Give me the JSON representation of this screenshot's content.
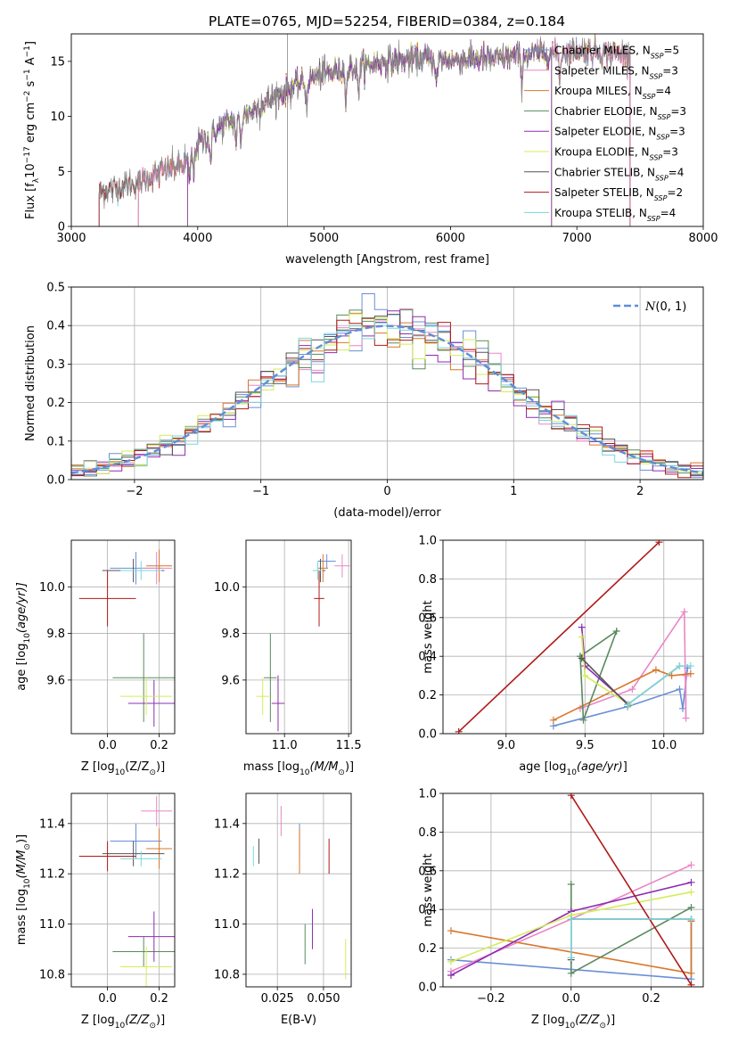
{
  "figure_title": "PLATE=0765, MJD=52254, FIBERID=0384, z=0.184",
  "colors": {
    "Chabrier MILES": "#6a8fd6",
    "Salpeter MILES": "#e986c8",
    "Kroupa MILES": "#d8772b",
    "Chabrier ELODIE": "#5a8a5e",
    "Salpeter ELODIE": "#8e2cb0",
    "Kroupa ELODIE": "#d4ec5a",
    "Chabrier STELIB": "#555555",
    "Salpeter STELIB": "#b01a1a",
    "Kroupa STELIB": "#7ad6dc",
    "normal": "#5f8dd9"
  },
  "chart_data": [
    {
      "id": "spectrum",
      "type": "line",
      "title": "",
      "xlabel": "wavelength [Angstrom, rest frame]",
      "ylabel": "Flux [f",
      "xlim": [
        3000,
        8000
      ],
      "ylim": [
        0,
        17.5
      ],
      "xticks": [
        "3000",
        "4000",
        "5000",
        "6000",
        "7000",
        "8000"
      ],
      "yticks": [
        "0",
        "5",
        "10",
        "15"
      ],
      "grid": false,
      "legend_position": "top-right",
      "legend": [
        {
          "name": "Chabrier MILES",
          "nssp": "5"
        },
        {
          "name": "Salpeter MILES",
          "nssp": "3"
        },
        {
          "name": "Kroupa MILES",
          "nssp": "4"
        },
        {
          "name": "Chabrier ELODIE",
          "nssp": "3"
        },
        {
          "name": "Salpeter ELODIE",
          "nssp": "3"
        },
        {
          "name": "Kroupa ELODIE",
          "nssp": "3"
        },
        {
          "name": "Chabrier STELIB",
          "nssp": "4"
        },
        {
          "name": "Salpeter STELIB",
          "nssp": "2"
        },
        {
          "name": "Kroupa STELIB",
          "nssp": "4"
        }
      ],
      "continuum": {
        "x": [
          3200,
          3300,
          3400,
          3500,
          3600,
          3700,
          3800,
          3900,
          4000,
          4100,
          4200,
          4300,
          4400,
          4500,
          4600,
          4800,
          5000,
          5200,
          5400,
          5600,
          5800,
          6000,
          6200,
          6400,
          6600,
          6800,
          7000,
          7200,
          7400,
          7500
        ],
        "y": [
          3.2,
          3.3,
          3.7,
          3.9,
          4.3,
          4.9,
          5.3,
          5.6,
          7.5,
          8.3,
          9.2,
          9.8,
          10.3,
          11.0,
          11.7,
          13.0,
          13.9,
          14.3,
          14.8,
          15.1,
          15.2,
          15.1,
          15.2,
          15.3,
          15.6,
          15.8,
          16.0,
          15.8,
          15.6,
          15.5
        ]
      },
      "model_ranges": [
        {
          "name": "Chabrier MILES",
          "x": [
            3530,
            7420
          ]
        },
        {
          "name": "Salpeter MILES",
          "x": [
            3530,
            7420
          ]
        },
        {
          "name": "Kroupa MILES",
          "x": [
            3530,
            7420
          ]
        },
        {
          "name": "Chabrier ELODIE",
          "x": [
            3920,
            6800
          ]
        },
        {
          "name": "Salpeter ELODIE",
          "x": [
            3920,
            6800
          ]
        },
        {
          "name": "Kroupa ELODIE",
          "x": [
            3920,
            6800
          ]
        },
        {
          "name": "Chabrier STELIB",
          "x": [
            3220,
            7420
          ]
        },
        {
          "name": "Salpeter STELIB",
          "x": [
            3220,
            7420
          ]
        },
        {
          "name": "Kroupa STELIB",
          "x": [
            3220,
            7420
          ]
        }
      ]
    },
    {
      "id": "residual_hist",
      "type": "line",
      "title": "",
      "xlabel": "(data-model)/error",
      "ylabel": "Normed distribution",
      "xlim": [
        -2.5,
        2.5
      ],
      "ylim": [
        0,
        0.5
      ],
      "xticks": [
        "−2",
        "−1",
        "0",
        "1",
        "2"
      ],
      "yticks": [
        "0.0",
        "0.1",
        "0.2",
        "0.3",
        "0.4",
        "0.5"
      ],
      "grid": true,
      "legend_position": "top-right",
      "legend": [
        {
          "name": "N(0,1)"
        }
      ],
      "bin_width": 0.1,
      "reference_curve": {
        "name": "N(0,1)",
        "mean": 0,
        "sigma": 1
      }
    },
    {
      "id": "z_age",
      "type": "scatter",
      "xlabel": "Z [log",
      "ylabel": "age  [log",
      "xlim": [
        -0.14,
        0.26
      ],
      "ylim": [
        9.37,
        10.2
      ],
      "xticks": [
        "0.0",
        "0.2"
      ],
      "yticks": [
        "9.6",
        "9.8",
        "10.0"
      ],
      "grid": true,
      "points": [
        {
          "name": "Chabrier MILES",
          "x": 0.11,
          "y": 10.08,
          "xerr": 0.1,
          "yerr": 0.07
        },
        {
          "name": "Salpeter MILES",
          "x": 0.19,
          "y": 10.08,
          "xerr": 0.06,
          "yerr": 0.07
        },
        {
          "name": "Kroupa MILES",
          "x": 0.2,
          "y": 10.09,
          "xerr": 0.05,
          "yerr": 0.07
        },
        {
          "name": "Chabrier ELODIE",
          "x": 0.14,
          "y": 9.61,
          "xerr": 0.12,
          "yerr": 0.19
        },
        {
          "name": "Salpeter ELODIE",
          "x": 0.18,
          "y": 9.5,
          "xerr": 0.1,
          "yerr": 0.1
        },
        {
          "name": "Kroupa ELODIE",
          "x": 0.15,
          "y": 9.53,
          "xerr": 0.1,
          "yerr": 0.08
        },
        {
          "name": "Chabrier STELIB",
          "x": 0.1,
          "y": 10.07,
          "xerr": 0.12,
          "yerr": 0.05
        },
        {
          "name": "Salpeter STELIB",
          "x": 0.0,
          "y": 9.95,
          "xerr": 0.11,
          "yerr": 0.12
        },
        {
          "name": "Kroupa STELIB",
          "x": 0.13,
          "y": 10.07,
          "xerr": 0.08,
          "yerr": 0.04
        }
      ]
    },
    {
      "id": "mass_age",
      "type": "scatter",
      "xlabel": "mass [log",
      "ylabel": "",
      "xlim": [
        10.7,
        11.52
      ],
      "ylim": [
        9.37,
        10.2
      ],
      "xticks": [
        "11.0",
        "11.5"
      ],
      "yticks": [
        "9.6",
        "9.8",
        "10.0"
      ],
      "grid": true,
      "points": [
        {
          "name": "Chabrier MILES",
          "x": 11.33,
          "y": 10.11,
          "xerr": 0.07,
          "yerr": 0.03
        },
        {
          "name": "Salpeter MILES",
          "x": 11.45,
          "y": 10.09,
          "xerr": 0.06,
          "yerr": 0.05
        },
        {
          "name": "Kroupa MILES",
          "x": 11.3,
          "y": 10.08,
          "xerr": 0.04,
          "yerr": 0.06
        },
        {
          "name": "Chabrier ELODIE",
          "x": 10.89,
          "y": 9.61,
          "xerr": 0.05,
          "yerr": 0.19
        },
        {
          "name": "Salpeter ELODIE",
          "x": 10.95,
          "y": 9.5,
          "xerr": 0.05,
          "yerr": 0.12
        },
        {
          "name": "Kroupa ELODIE",
          "x": 10.83,
          "y": 9.53,
          "xerr": 0.05,
          "yerr": 0.08
        },
        {
          "name": "Chabrier STELIB",
          "x": 11.28,
          "y": 10.07,
          "xerr": 0.04,
          "yerr": 0.05
        },
        {
          "name": "Salpeter STELIB",
          "x": 11.27,
          "y": 9.95,
          "xerr": 0.04,
          "yerr": 0.12
        },
        {
          "name": "Kroupa STELIB",
          "x": 11.26,
          "y": 10.07,
          "xerr": 0.04,
          "yerr": 0.04
        }
      ]
    },
    {
      "id": "age_weight",
      "type": "line",
      "xlabel": "age  [log",
      "ylabel": "mass weight",
      "xlim": [
        8.6,
        10.25
      ],
      "ylim": [
        0,
        1
      ],
      "xticks": [
        "9.0",
        "9.5",
        "10.0"
      ],
      "yticks": [
        "0.0",
        "0.2",
        "0.4",
        "0.6",
        "0.8",
        "1.0"
      ],
      "grid": true,
      "series": [
        {
          "name": "Chabrier MILES",
          "x": [
            9.3,
            9.77,
            10.1,
            10.12,
            10.15
          ],
          "y": [
            0.04,
            0.14,
            0.23,
            0.13,
            0.34
          ]
        },
        {
          "name": "Salpeter MILES",
          "x": [
            9.47,
            9.8,
            10.13,
            10.14,
            10.14
          ],
          "y": [
            0.13,
            0.23,
            0.63,
            0.08,
            0.3
          ]
        },
        {
          "name": "Kroupa MILES",
          "x": [
            9.3,
            9.95,
            10.05,
            10.17
          ],
          "y": [
            0.07,
            0.33,
            0.3,
            0.31
          ]
        },
        {
          "name": "Chabrier ELODIE",
          "x": [
            9.47,
            9.49,
            9.7,
            9.47
          ],
          "y": [
            0.4,
            0.07,
            0.53,
            0.4
          ]
        },
        {
          "name": "Salpeter ELODIE",
          "x": [
            9.48,
            9.5,
            9.78
          ],
          "y": [
            0.55,
            0.35,
            0.15
          ]
        },
        {
          "name": "Kroupa ELODIE",
          "x": [
            9.48,
            9.5,
            9.78
          ],
          "y": [
            0.5,
            0.3,
            0.15
          ]
        },
        {
          "name": "Chabrier STELIB",
          "x": [
            9.48,
            9.77,
            10.1
          ],
          "y": [
            0.39,
            0.15,
            0.35
          ]
        },
        {
          "name": "Salpeter STELIB",
          "x": [
            8.7,
            9.97
          ],
          "y": [
            0.01,
            0.99
          ]
        },
        {
          "name": "Kroupa STELIB",
          "x": [
            9.77,
            10.1,
            10.17
          ],
          "y": [
            0.15,
            0.35,
            0.35
          ]
        }
      ]
    },
    {
      "id": "z_mass",
      "type": "scatter",
      "xlabel": "Z [log",
      "ylabel": "mass [log",
      "xlim": [
        -0.14,
        0.26
      ],
      "ylim": [
        10.75,
        11.52
      ],
      "xticks": [
        "0.0",
        "0.2"
      ],
      "yticks": [
        "10.8",
        "11.0",
        "11.2",
        "11.4"
      ],
      "grid": true,
      "points": [
        {
          "name": "Chabrier MILES",
          "x": 0.11,
          "y": 11.33,
          "xerr": 0.1,
          "yerr": 0.07
        },
        {
          "name": "Salpeter MILES",
          "x": 0.19,
          "y": 11.45,
          "xerr": 0.06,
          "yerr": 0.06
        },
        {
          "name": "Kroupa MILES",
          "x": 0.2,
          "y": 11.3,
          "xerr": 0.05,
          "yerr": 0.08
        },
        {
          "name": "Chabrier ELODIE",
          "x": 0.14,
          "y": 10.89,
          "xerr": 0.12,
          "yerr": 0.06
        },
        {
          "name": "Salpeter ELODIE",
          "x": 0.18,
          "y": 10.95,
          "xerr": 0.1,
          "yerr": 0.1
        },
        {
          "name": "Kroupa ELODIE",
          "x": 0.15,
          "y": 10.83,
          "xerr": 0.1,
          "yerr": 0.08
        },
        {
          "name": "Chabrier STELIB",
          "x": 0.1,
          "y": 11.28,
          "xerr": 0.12,
          "yerr": 0.05
        },
        {
          "name": "Salpeter STELIB",
          "x": 0.0,
          "y": 11.27,
          "xerr": 0.11,
          "yerr": 0.06
        },
        {
          "name": "Kroupa STELIB",
          "x": 0.13,
          "y": 11.26,
          "xerr": 0.08,
          "yerr": 0.03
        }
      ]
    },
    {
      "id": "ebv_mass",
      "type": "scatter",
      "xlabel": "E(B-V)",
      "ylabel": "",
      "xlim": [
        0.008,
        0.065
      ],
      "ylim": [
        10.75,
        11.52
      ],
      "xticks": [
        "0.025",
        "0.050"
      ],
      "yticks": [
        "10.8",
        "11.0",
        "11.2",
        "11.4"
      ],
      "grid": true,
      "points": [
        {
          "name": "Chabrier MILES",
          "x": 0.037,
          "y": 11.33,
          "yerr": 0.07
        },
        {
          "name": "Salpeter MILES",
          "x": 0.027,
          "y": 11.41,
          "yerr": 0.06
        },
        {
          "name": "Kroupa MILES",
          "x": 0.037,
          "y": 11.29,
          "yerr": 0.09
        },
        {
          "name": "Chabrier ELODIE",
          "x": 0.04,
          "y": 10.92,
          "yerr": 0.08
        },
        {
          "name": "Salpeter ELODIE",
          "x": 0.044,
          "y": 10.98,
          "yerr": 0.08
        },
        {
          "name": "Kroupa ELODIE",
          "x": 0.062,
          "y": 10.86,
          "yerr": 0.08
        },
        {
          "name": "Chabrier STELIB",
          "x": 0.015,
          "y": 11.29,
          "yerr": 0.05
        },
        {
          "name": "Salpeter STELIB",
          "x": 0.053,
          "y": 11.27,
          "yerr": 0.07
        },
        {
          "name": "Kroupa STELIB",
          "x": 0.012,
          "y": 11.27,
          "yerr": 0.04
        }
      ]
    },
    {
      "id": "z_weight",
      "type": "line",
      "xlabel": "Z [log",
      "ylabel": "mass weight",
      "xlim": [
        -0.32,
        0.33
      ],
      "ylim": [
        0,
        1
      ],
      "xticks": [
        "−0.2",
        "0.0",
        "0.2"
      ],
      "yticks": [
        "0.0",
        "0.2",
        "0.4",
        "0.6",
        "0.8",
        "1.0"
      ],
      "grid": true,
      "series": [
        {
          "name": "Chabrier MILES",
          "x": [
            -0.3,
            0.3,
            0.3
          ],
          "y": [
            0.14,
            0.04,
            0.34
          ]
        },
        {
          "name": "Salpeter MILES",
          "x": [
            -0.3,
            0.0,
            0.3
          ],
          "y": [
            0.08,
            0.35,
            0.63
          ]
        },
        {
          "name": "Kroupa MILES",
          "x": [
            -0.3,
            0.3,
            0.3
          ],
          "y": [
            0.29,
            0.07,
            0.34
          ]
        },
        {
          "name": "Chabrier ELODIE",
          "x": [
            0.0,
            0.0,
            0.0,
            0.3
          ],
          "y": [
            0.53,
            0.15,
            0.07,
            0.41
          ]
        },
        {
          "name": "Salpeter ELODIE",
          "x": [
            -0.3,
            0.0,
            0.3
          ],
          "y": [
            0.06,
            0.39,
            0.54
          ]
        },
        {
          "name": "Kroupa ELODIE",
          "x": [
            -0.3,
            0.0,
            0.3
          ],
          "y": [
            0.13,
            0.37,
            0.49
          ]
        },
        {
          "name": "Chabrier STELIB",
          "x": [
            0.0,
            0.0,
            0.3
          ],
          "y": [
            0.14,
            0.35,
            0.35
          ]
        },
        {
          "name": "Salpeter STELIB",
          "x": [
            0.0,
            0.3
          ],
          "y": [
            0.99,
            0.01
          ]
        },
        {
          "name": "Kroupa STELIB",
          "x": [
            0.0,
            0.0,
            0.3
          ],
          "y": [
            0.15,
            0.35,
            0.35
          ]
        }
      ]
    }
  ]
}
